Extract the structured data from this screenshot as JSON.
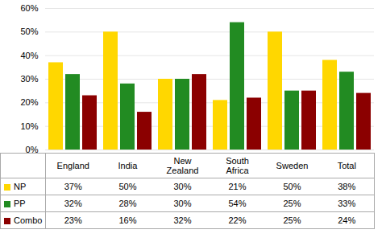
{
  "chart_data": {
    "type": "bar",
    "categories": [
      "England",
      "India",
      "New\nZealand",
      "South\nAfrica",
      "Sweden",
      "Total"
    ],
    "series": [
      {
        "name": "NP",
        "color": "#FFD700",
        "values": [
          37,
          50,
          30,
          21,
          50,
          38
        ],
        "value_labels": [
          "37%",
          "50%",
          "30%",
          "21%",
          "50%",
          "38%"
        ]
      },
      {
        "name": "PP",
        "color": "#228B22",
        "values": [
          32,
          28,
          30,
          54,
          25,
          33
        ],
        "value_labels": [
          "32%",
          "28%",
          "30%",
          "54%",
          "25%",
          "33%"
        ]
      },
      {
        "name": "Combo",
        "color": "#8B0000",
        "values": [
          23,
          16,
          32,
          22,
          25,
          24
        ],
        "value_labels": [
          "23%",
          "16%",
          "32%",
          "22%",
          "25%",
          "24%"
        ]
      }
    ],
    "ylim": [
      0,
      60
    ],
    "yticks": [
      {
        "value": 0,
        "label": "0%"
      },
      {
        "value": 10,
        "label": "10%"
      },
      {
        "value": 20,
        "label": "20%"
      },
      {
        "value": 30,
        "label": "30%"
      },
      {
        "value": 40,
        "label": "40%"
      },
      {
        "value": 50,
        "label": "50%"
      },
      {
        "value": 60,
        "label": "60%"
      }
    ],
    "grid": true,
    "legend": "bottom",
    "data_labels": true
  }
}
